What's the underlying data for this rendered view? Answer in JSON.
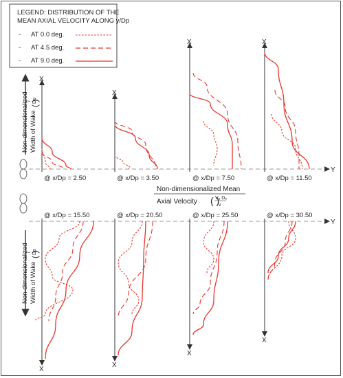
{
  "legend": {
    "title_line1": "LEGEND: DISTRIBUTION OF THE",
    "title_line2": "MEAN AXIAL VELOCITY ALONG y/Dp",
    "entries": [
      {
        "dash": "-",
        "label": "AT 0.0 deg."
      },
      {
        "dash": "-",
        "label": "AT 4.5 deg."
      },
      {
        "dash": "-",
        "label": "AT 9.0 deg."
      }
    ]
  },
  "colors": {
    "series": "#e8332a",
    "axis": "#333333",
    "centerline": "#999999"
  },
  "axis_labels": {
    "x_letter": "X",
    "y_letter": "Y",
    "top_ylabel_line1": "Non-dimensionalized",
    "top_ylabel_line2": "Width of Wake",
    "top_ylabel_frac_num": "r",
    "top_ylabel_frac_den": "Dp",
    "bottom_ylabel_line1": "Non-dimensionalized",
    "bottom_ylabel_line2": "Width of Wake",
    "xlabel_line1": "Non-dimensionalized Mean",
    "xlabel_line2": "Axial Velocity",
    "xlabel_frac_num": "Vₐ Dₚ",
    "xlabel_frac_den": "ν"
  },
  "chart_data": [
    {
      "type": "line",
      "station_label": "@  x/Dp = 2.50",
      "series": [
        {
          "name": "AT 0.0 deg.",
          "points": [
            [
              0.0,
              0.3
            ],
            [
              0.05,
              0.1
            ],
            [
              0.12,
              0.0
            ]
          ]
        },
        {
          "name": "AT 4.5 deg.",
          "points": [
            [
              0.0,
              0.25
            ],
            [
              0.15,
              0.1
            ],
            [
              0.32,
              0.0
            ]
          ]
        },
        {
          "name": "AT 9.0 deg.",
          "points": [
            [
              0.0,
              0.45
            ],
            [
              0.15,
              0.25
            ],
            [
              0.35,
              0.05
            ],
            [
              0.42,
              0.0
            ]
          ]
        }
      ]
    },
    {
      "type": "line",
      "station_label": "@  x/Dp = 3.50",
      "series": [
        {
          "name": "AT 0.0 deg.",
          "points": [
            [
              0.0,
              0.2
            ],
            [
              0.12,
              0.1
            ],
            [
              0.22,
              0.02
            ],
            [
              0.2,
              0.0
            ]
          ]
        },
        {
          "name": "AT 4.5 deg.",
          "points": [
            [
              0.0,
              0.7
            ],
            [
              0.25,
              0.55
            ],
            [
              0.45,
              0.35
            ],
            [
              0.6,
              0.0
            ]
          ]
        },
        {
          "name": "AT 9.0 deg.",
          "points": [
            [
              0.0,
              0.65
            ],
            [
              0.3,
              0.45
            ],
            [
              0.5,
              0.2
            ],
            [
              0.62,
              0.0
            ]
          ]
        }
      ]
    },
    {
      "type": "line",
      "station_label": "@  x/Dp = 7.50",
      "series": [
        {
          "name": "AT 0.0 deg.",
          "points": [
            [
              0.2,
              0.7
            ],
            [
              0.35,
              0.5
            ],
            [
              0.4,
              0.3
            ],
            [
              0.35,
              0.05
            ]
          ]
        },
        {
          "name": "AT 4.5 deg.",
          "points": [
            [
              0.05,
              1.4
            ],
            [
              0.25,
              1.2
            ],
            [
              0.55,
              0.8
            ],
            [
              0.7,
              0.4
            ],
            [
              0.75,
              0.0
            ]
          ]
        },
        {
          "name": "AT 9.0 deg.",
          "points": [
            [
              0.0,
              1.1
            ],
            [
              0.3,
              0.95
            ],
            [
              0.55,
              0.65
            ],
            [
              0.62,
              0.35
            ],
            [
              0.62,
              0.0
            ]
          ]
        }
      ]
    },
    {
      "type": "line",
      "station_label": "@  x/Dp = 11.50",
      "series": [
        {
          "name": "AT 0.0 deg.",
          "points": [
            [
              0.1,
              0.8
            ],
            [
              0.25,
              0.55
            ],
            [
              0.45,
              0.3
            ],
            [
              0.55,
              0.0
            ]
          ]
        },
        {
          "name": "AT 4.5 deg.",
          "points": [
            [
              0.15,
              1.15
            ],
            [
              0.3,
              0.9
            ],
            [
              0.45,
              0.55
            ],
            [
              0.5,
              0.2
            ],
            [
              0.5,
              0.0
            ]
          ]
        },
        {
          "name": "AT 9.0 deg.",
          "points": [
            [
              0.0,
              1.7
            ],
            [
              0.2,
              1.45
            ],
            [
              0.28,
              0.95
            ],
            [
              0.4,
              0.4
            ],
            [
              0.65,
              0.0
            ]
          ]
        }
      ]
    },
    {
      "type": "line",
      "station_label": "@  x/Dp = 15.50",
      "series": [
        {
          "name": "AT 0.0 deg.",
          "points": [
            [
              0.55,
              0.0
            ],
            [
              0.25,
              -0.25
            ],
            [
              0.05,
              -0.55
            ],
            [
              0.15,
              -0.8
            ],
            [
              0.45,
              -1.0
            ],
            [
              0.05,
              -1.35
            ],
            [
              -0.1,
              -1.45
            ]
          ]
        },
        {
          "name": "AT 4.5 deg.",
          "points": [
            [
              0.6,
              0.0
            ],
            [
              0.45,
              -0.4
            ],
            [
              0.3,
              -0.75
            ],
            [
              0.2,
              -1.1
            ],
            [
              0.1,
              -1.45
            ]
          ]
        },
        {
          "name": "AT 9.0 deg.",
          "points": [
            [
              0.75,
              0.0
            ],
            [
              0.55,
              -0.5
            ],
            [
              0.35,
              -1.0
            ],
            [
              0.2,
              -1.5
            ],
            [
              0.05,
              -2.0
            ]
          ]
        }
      ]
    },
    {
      "type": "line",
      "station_label": "@  x/Dp = 20.50",
      "series": [
        {
          "name": "AT 0.0 deg.",
          "points": [
            [
              0.4,
              0.0
            ],
            [
              0.25,
              -0.3
            ],
            [
              0.05,
              -0.6
            ],
            [
              0.2,
              -0.9
            ],
            [
              0.35,
              -1.15
            ],
            [
              0.25,
              -1.35
            ]
          ]
        },
        {
          "name": "AT 4.5 deg.",
          "points": [
            [
              0.55,
              0.0
            ],
            [
              0.45,
              -0.55
            ],
            [
              0.2,
              -1.05
            ],
            [
              0.05,
              -1.4
            ]
          ]
        },
        {
          "name": "AT 9.0 deg.",
          "points": [
            [
              0.45,
              0.0
            ],
            [
              0.42,
              -0.55
            ],
            [
              0.4,
              -1.1
            ],
            [
              0.25,
              -1.6
            ],
            [
              0.05,
              -1.95
            ]
          ]
        }
      ]
    },
    {
      "type": "line",
      "station_label": "@  x/Dp = 25.50",
      "series": [
        {
          "name": "AT 0.0 deg.",
          "points": [
            [
              0.35,
              0.0
            ],
            [
              0.2,
              -0.3
            ],
            [
              0.35,
              -0.55
            ],
            [
              0.25,
              -0.75
            ]
          ]
        },
        {
          "name": "AT 4.5 deg.",
          "points": [
            [
              0.5,
              0.0
            ],
            [
              0.4,
              -0.45
            ],
            [
              0.3,
              -0.9
            ],
            [
              0.15,
              -1.2
            ],
            [
              0.05,
              -1.35
            ]
          ]
        },
        {
          "name": "AT 9.0 deg.",
          "points": [
            [
              0.55,
              0.0
            ],
            [
              0.42,
              -0.6
            ],
            [
              0.35,
              -1.15
            ],
            [
              0.2,
              -1.5
            ],
            [
              0.05,
              -1.65
            ]
          ]
        }
      ]
    },
    {
      "type": "line",
      "station_label": "@  x/Dp = 30.50",
      "series": [
        {
          "name": "AT 0.0 deg.",
          "points": [
            [
              0.35,
              0.0
            ],
            [
              0.45,
              -0.25
            ],
            [
              0.25,
              -0.5
            ],
            [
              0.05,
              -0.85
            ]
          ]
        },
        {
          "name": "AT 4.5 deg.",
          "points": [
            [
              0.4,
              0.0
            ],
            [
              0.3,
              -0.3
            ],
            [
              0.15,
              -0.6
            ],
            [
              0.05,
              -0.85
            ]
          ]
        },
        {
          "name": "AT 9.0 deg.",
          "points": [
            [
              0.45,
              0.0
            ],
            [
              0.35,
              -0.25
            ],
            [
              0.2,
              -0.5
            ],
            [
              0.05,
              -0.75
            ]
          ]
        }
      ]
    }
  ]
}
